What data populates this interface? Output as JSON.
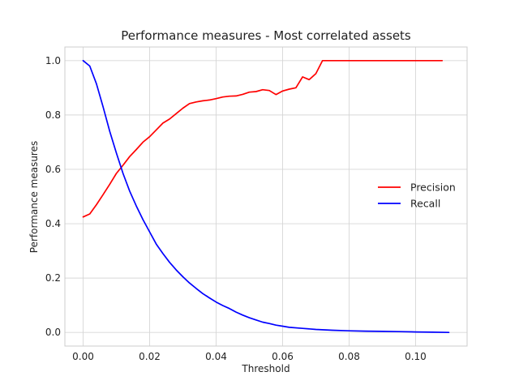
{
  "chart_data": {
    "type": "line",
    "title": "Performance measures - Most correlated assets",
    "xlabel": "Threshold",
    "ylabel": "Performance measures",
    "xlim": [
      -0.0055,
      0.1155
    ],
    "ylim": [
      -0.05,
      1.05
    ],
    "xticks": [
      0.0,
      0.02,
      0.04,
      0.06,
      0.08,
      0.1
    ],
    "xtick_labels": [
      "0.00",
      "0.02",
      "0.04",
      "0.06",
      "0.08",
      "0.10"
    ],
    "yticks": [
      0.0,
      0.2,
      0.4,
      0.6,
      0.8,
      1.0
    ],
    "ytick_labels": [
      "0.0",
      "0.2",
      "0.4",
      "0.6",
      "0.8",
      "1.0"
    ],
    "grid": true,
    "legend_position": "center-right",
    "series": [
      {
        "name": "Precision",
        "color": "#ff0000",
        "x": [
          0.0,
          0.002,
          0.004,
          0.006,
          0.008,
          0.01,
          0.012,
          0.014,
          0.016,
          0.018,
          0.02,
          0.022,
          0.024,
          0.026,
          0.028,
          0.03,
          0.032,
          0.034,
          0.036,
          0.038,
          0.04,
          0.042,
          0.044,
          0.046,
          0.048,
          0.05,
          0.052,
          0.054,
          0.056,
          0.058,
          0.06,
          0.062,
          0.064,
          0.066,
          0.068,
          0.07,
          0.072,
          0.074,
          0.076,
          0.077,
          0.08,
          0.085,
          0.09,
          0.095,
          0.1,
          0.105,
          0.108
        ],
        "y": [
          0.425,
          0.436,
          0.47,
          0.507,
          0.545,
          0.585,
          0.615,
          0.647,
          0.673,
          0.7,
          0.72,
          0.745,
          0.77,
          0.785,
          0.805,
          0.825,
          0.842,
          0.848,
          0.852,
          0.855,
          0.86,
          0.866,
          0.869,
          0.87,
          0.876,
          0.884,
          0.886,
          0.893,
          0.89,
          0.875,
          0.888,
          0.895,
          0.9,
          0.94,
          0.93,
          0.952,
          1.0,
          1.0,
          1.0,
          1.0,
          1.0,
          1.0,
          1.0,
          1.0,
          1.0,
          1.0,
          1.0
        ]
      },
      {
        "name": "Recall",
        "color": "#0000ff",
        "x": [
          0.0,
          0.002,
          0.004,
          0.006,
          0.008,
          0.01,
          0.012,
          0.014,
          0.016,
          0.018,
          0.02,
          0.022,
          0.024,
          0.026,
          0.028,
          0.03,
          0.032,
          0.034,
          0.036,
          0.038,
          0.04,
          0.042,
          0.044,
          0.046,
          0.048,
          0.05,
          0.052,
          0.054,
          0.056,
          0.058,
          0.06,
          0.062,
          0.066,
          0.07,
          0.075,
          0.08,
          0.085,
          0.09,
          0.095,
          0.1,
          0.105,
          0.11
        ],
        "y": [
          1.0,
          0.98,
          0.915,
          0.83,
          0.74,
          0.66,
          0.585,
          0.52,
          0.465,
          0.415,
          0.37,
          0.325,
          0.29,
          0.258,
          0.23,
          0.205,
          0.182,
          0.162,
          0.143,
          0.127,
          0.112,
          0.099,
          0.088,
          0.075,
          0.064,
          0.054,
          0.046,
          0.038,
          0.033,
          0.027,
          0.023,
          0.019,
          0.015,
          0.011,
          0.008,
          0.006,
          0.005,
          0.004,
          0.003,
          0.002,
          0.001,
          0.0
        ]
      }
    ]
  }
}
